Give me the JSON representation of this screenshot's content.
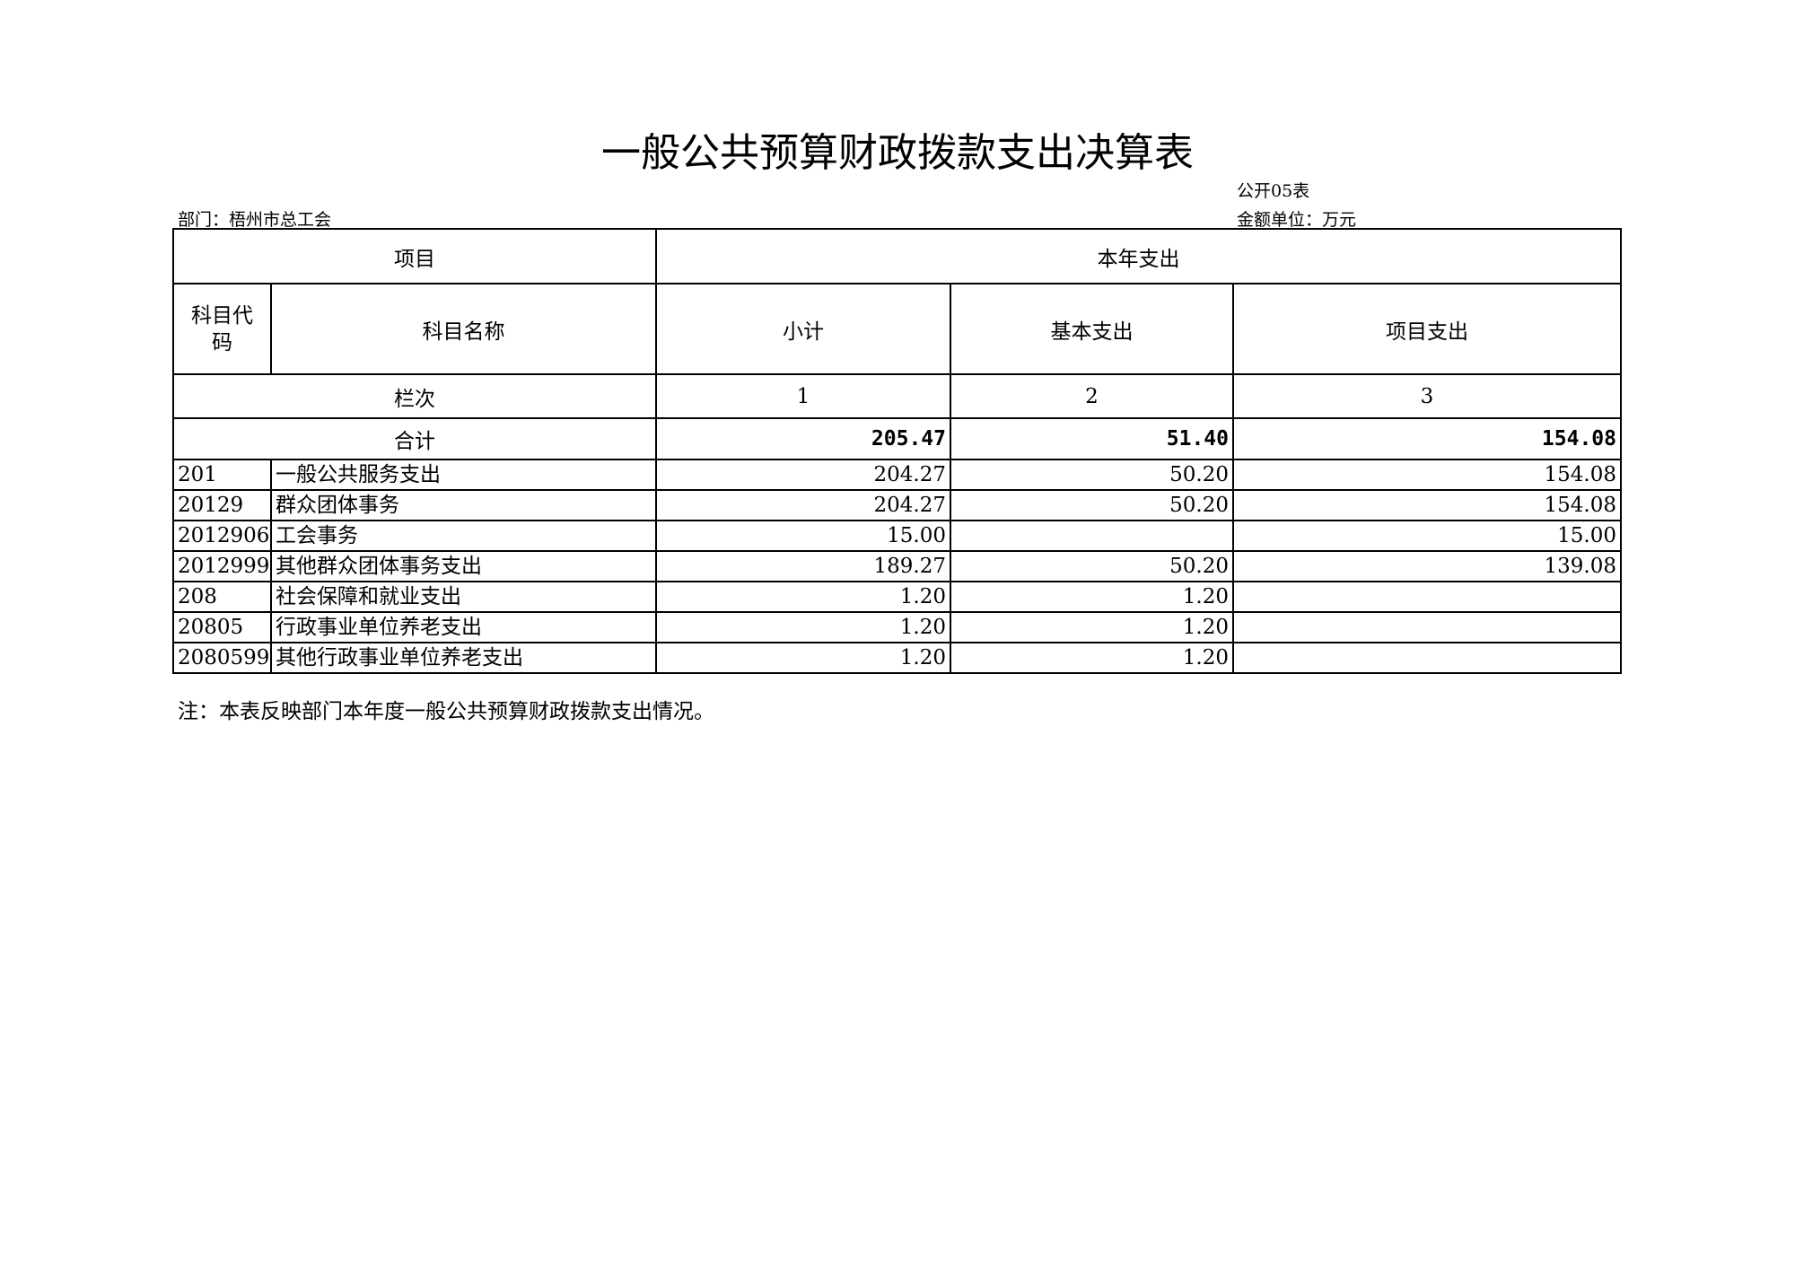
{
  "title": "一般公共预算财政拨款支出决算表",
  "form_no": "公开05表",
  "department": "部门：梧州市总工会",
  "unit": "金额单位：万元",
  "header": {
    "item": "项目",
    "current_year": "本年支出",
    "code": "科目代码",
    "name": "科目名称",
    "subtotal": "小计",
    "basic": "基本支出",
    "project": "项目支出",
    "column_no": "栏次",
    "col1": "1",
    "col2": "2",
    "col3": "3"
  },
  "total": {
    "label": "合计",
    "subtotal": "205.47",
    "basic": "51.40",
    "project": "154.08"
  },
  "rows": [
    {
      "code": "201",
      "name": "一般公共服务支出",
      "subtotal": "204.27",
      "basic": "50.20",
      "project": "154.08"
    },
    {
      "code": "20129",
      "name": "群众团体事务",
      "subtotal": "204.27",
      "basic": "50.20",
      "project": "154.08"
    },
    {
      "code": "2012906",
      "name": "工会事务",
      "subtotal": "15.00",
      "basic": "",
      "project": "15.00"
    },
    {
      "code": "2012999",
      "name": "其他群众团体事务支出",
      "subtotal": "189.27",
      "basic": "50.20",
      "project": "139.08"
    },
    {
      "code": "208",
      "name": "社会保障和就业支出",
      "subtotal": "1.20",
      "basic": "1.20",
      "project": ""
    },
    {
      "code": "20805",
      "name": "行政事业单位养老支出",
      "subtotal": "1.20",
      "basic": "1.20",
      "project": ""
    },
    {
      "code": "2080599",
      "name": "其他行政事业单位养老支出",
      "subtotal": "1.20",
      "basic": "1.20",
      "project": ""
    }
  ],
  "note": "注：本表反映部门本年度一般公共预算财政拨款支出情况。"
}
